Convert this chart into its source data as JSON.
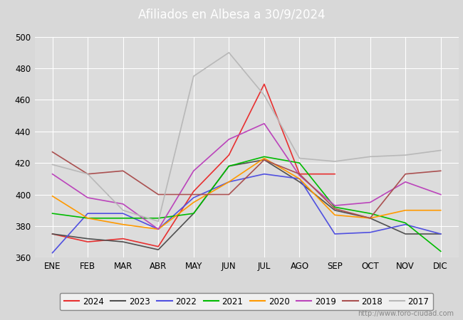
{
  "title": "Afiliados en Albesa a 30/9/2024",
  "background_color": "#d8d8d8",
  "plot_bg_color": "#dcdcdc",
  "header_color": "#4472c4",
  "months": [
    "ENE",
    "FEB",
    "MAR",
    "ABR",
    "MAY",
    "JUN",
    "JUL",
    "AGO",
    "SEP",
    "OCT",
    "NOV",
    "DIC"
  ],
  "ylim": [
    360,
    500
  ],
  "yticks": [
    360,
    380,
    400,
    420,
    440,
    460,
    480,
    500
  ],
  "series": {
    "2024": {
      "color": "#e83030",
      "data": [
        375,
        370,
        372,
        367,
        402,
        425,
        470,
        413,
        413,
        null,
        null,
        null
      ]
    },
    "2023": {
      "color": "#505050",
      "data": [
        375,
        372,
        370,
        365,
        388,
        418,
        422,
        408,
        390,
        385,
        375,
        375
      ]
    },
    "2022": {
      "color": "#5050e0",
      "data": [
        363,
        388,
        388,
        378,
        398,
        408,
        413,
        410,
        375,
        376,
        381,
        375
      ]
    },
    "2021": {
      "color": "#00bb00",
      "data": [
        388,
        385,
        385,
        385,
        388,
        418,
        424,
        420,
        392,
        388,
        382,
        364
      ]
    },
    "2020": {
      "color": "#ff9900",
      "data": [
        399,
        385,
        381,
        378,
        395,
        408,
        423,
        410,
        387,
        385,
        390,
        390
      ]
    },
    "2019": {
      "color": "#bb44bb",
      "data": [
        413,
        398,
        394,
        378,
        415,
        435,
        445,
        412,
        393,
        395,
        408,
        400
      ]
    },
    "2018": {
      "color": "#aa5050",
      "data": [
        427,
        413,
        415,
        400,
        400,
        400,
        422,
        413,
        391,
        385,
        413,
        415
      ]
    },
    "2017": {
      "color": "#b8b8b8",
      "data": [
        419,
        413,
        390,
        383,
        475,
        490,
        463,
        423,
        421,
        424,
        425,
        428
      ]
    }
  },
  "legend_order": [
    "2024",
    "2023",
    "2022",
    "2021",
    "2020",
    "2019",
    "2018",
    "2017"
  ],
  "watermark": "http://www.foro-ciudad.com",
  "grid_color": "#ffffff",
  "tick_fontsize": 8.5,
  "legend_fontsize": 8.5
}
